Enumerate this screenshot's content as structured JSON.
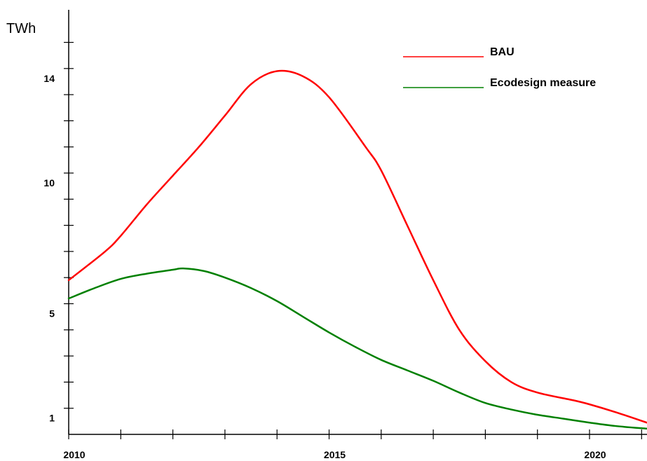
{
  "chart_data": {
    "type": "line",
    "title": "",
    "ylabel": "TWh",
    "xlabel": "",
    "x_range": [
      2010,
      2021.1
    ],
    "ylim": [
      0,
      16.5
    ],
    "x_ticks": [
      2010,
      2011,
      2012,
      2013,
      2014,
      2015,
      2016,
      2017,
      2018,
      2019,
      2020,
      2021
    ],
    "x_tick_labels": [
      {
        "x": 2010,
        "label": "2010"
      },
      {
        "x": 2015,
        "label": "2015"
      },
      {
        "x": 2020,
        "label": "2020"
      }
    ],
    "y_ticks": [
      1,
      2,
      3,
      4,
      5,
      6,
      7,
      8,
      9,
      10,
      11,
      12,
      13,
      14,
      15
    ],
    "y_tick_labels": [
      {
        "y": 1,
        "label": "1"
      },
      {
        "y": 5,
        "label": "5"
      },
      {
        "y": 10,
        "label": "10"
      },
      {
        "y": 14,
        "label": "14"
      }
    ],
    "grid": false,
    "legend": "top-right",
    "series": [
      {
        "name": "BAU",
        "color": "#ff0000",
        "points": [
          [
            2010,
            5.9
          ],
          [
            2010.7,
            7.0
          ],
          [
            2011,
            7.6
          ],
          [
            2011.5,
            8.8
          ],
          [
            2012,
            9.9
          ],
          [
            2012.5,
            11.0
          ],
          [
            2013,
            12.2
          ],
          [
            2013.5,
            13.4
          ],
          [
            2014,
            13.9
          ],
          [
            2014.5,
            13.7
          ],
          [
            2015,
            12.9
          ],
          [
            2015.7,
            11.0
          ],
          [
            2016,
            10.1
          ],
          [
            2016.5,
            8.0
          ],
          [
            2017,
            5.9
          ],
          [
            2017.5,
            4.0
          ],
          [
            2018,
            2.8
          ],
          [
            2018.5,
            2.0
          ],
          [
            2019,
            1.6
          ],
          [
            2019.7,
            1.3
          ],
          [
            2020,
            1.15
          ],
          [
            2020.5,
            0.85
          ],
          [
            2021.1,
            0.45
          ]
        ]
      },
      {
        "name": "Ecodesign measure",
        "color": "#008000",
        "points": [
          [
            2010,
            5.2
          ],
          [
            2010.5,
            5.6
          ],
          [
            2011,
            5.95
          ],
          [
            2011.5,
            6.15
          ],
          [
            2012,
            6.3
          ],
          [
            2012.2,
            6.35
          ],
          [
            2012.6,
            6.25
          ],
          [
            2013,
            6.0
          ],
          [
            2013.5,
            5.6
          ],
          [
            2014,
            5.1
          ],
          [
            2014.5,
            4.5
          ],
          [
            2015,
            3.9
          ],
          [
            2015.5,
            3.35
          ],
          [
            2016,
            2.85
          ],
          [
            2016.5,
            2.45
          ],
          [
            2017,
            2.05
          ],
          [
            2017.5,
            1.6
          ],
          [
            2018,
            1.2
          ],
          [
            2018.5,
            0.95
          ],
          [
            2019,
            0.75
          ],
          [
            2019.5,
            0.6
          ],
          [
            2020,
            0.45
          ],
          [
            2020.5,
            0.32
          ],
          [
            2021.1,
            0.22
          ]
        ]
      }
    ]
  }
}
